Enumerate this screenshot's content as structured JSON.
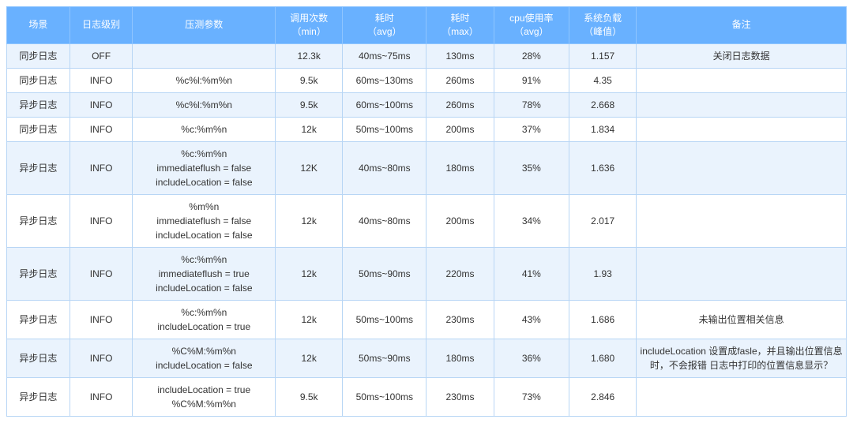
{
  "table": {
    "header_bg": "#69b1ff",
    "header_fg": "#ffffff",
    "row_odd_bg": "#eaf3fd",
    "row_even_bg": "#ffffff",
    "border_color": "#b8d6f5",
    "font_size_pt": 9,
    "columns": [
      {
        "key": "scene",
        "label": "场景",
        "width_pct": 7.5
      },
      {
        "key": "level",
        "label": "日志级别",
        "width_pct": 7.5
      },
      {
        "key": "params",
        "label": "压测参数",
        "width_pct": 17
      },
      {
        "key": "calls",
        "label": "调用次数\n（min）",
        "width_pct": 8
      },
      {
        "key": "t_avg",
        "label": "耗时\n（avg）",
        "width_pct": 10
      },
      {
        "key": "t_max",
        "label": "耗时\n（max）",
        "width_pct": 8
      },
      {
        "key": "cpu",
        "label": "cpu使用率\n（avg）",
        "width_pct": 9
      },
      {
        "key": "load",
        "label": "系统负载\n（峰值）",
        "width_pct": 8
      },
      {
        "key": "remark",
        "label": "备注",
        "width_pct": 25
      }
    ],
    "rows": [
      {
        "scene": "同步日志",
        "level": "OFF",
        "params": "",
        "calls": "12.3k",
        "t_avg": "40ms~75ms",
        "t_max": "130ms",
        "cpu": "28%",
        "load": "1.157",
        "remark": "关闭日志数据"
      },
      {
        "scene": "同步日志",
        "level": "INFO",
        "params": "%c%l:%m%n",
        "calls": "9.5k",
        "t_avg": "60ms~130ms",
        "t_max": "260ms",
        "cpu": "91%",
        "load": "4.35",
        "remark": ""
      },
      {
        "scene": "异步日志",
        "level": "INFO",
        "params": "%c%l:%m%n",
        "calls": "9.5k",
        "t_avg": "60ms~100ms",
        "t_max": "260ms",
        "cpu": "78%",
        "load": "2.668",
        "remark": ""
      },
      {
        "scene": "同步日志",
        "level": "INFO",
        "params": "%c:%m%n",
        "calls": "12k",
        "t_avg": "50ms~100ms",
        "t_max": "200ms",
        "cpu": "37%",
        "load": "1.834",
        "remark": ""
      },
      {
        "scene": "异步日志",
        "level": "INFO",
        "params": "%c:%m%n\nimmediateflush = false\nincludeLocation = false",
        "calls": "12K",
        "t_avg": "40ms~80ms",
        "t_max": "180ms",
        "cpu": "35%",
        "load": "1.636",
        "remark": ""
      },
      {
        "scene": "异步日志",
        "level": "INFO",
        "params": "%m%n\nimmediateflush = false\nincludeLocation = false",
        "calls": "12k",
        "t_avg": "40ms~80ms",
        "t_max": "200ms",
        "cpu": "34%",
        "load": "2.017",
        "remark": ""
      },
      {
        "scene": "异步日志",
        "level": "INFO",
        "params": "%c:%m%n\nimmediateflush = true\nincludeLocation = false",
        "calls": "12k",
        "t_avg": "50ms~90ms",
        "t_max": "220ms",
        "cpu": "41%",
        "load": "1.93",
        "remark": ""
      },
      {
        "scene": "异步日志",
        "level": "INFO",
        "params": "%c:%m%n\nincludeLocation = true",
        "calls": "12k",
        "t_avg": "50ms~100ms",
        "t_max": "230ms",
        "cpu": "43%",
        "load": "1.686",
        "remark": "未输出位置相关信息"
      },
      {
        "scene": "异步日志",
        "level": "INFO",
        "params": "%C%M:%m%n\nincludeLocation = false",
        "calls": "12k",
        "t_avg": "50ms~90ms",
        "t_max": "180ms",
        "cpu": "36%",
        "load": "1.680",
        "remark": "includeLocation 设置成fasle，并且输出位置信息时，不会报错 日志中打印的位置信息显示？"
      },
      {
        "scene": "异步日志",
        "level": "INFO",
        "params": "includeLocation = true\n%C%M:%m%n",
        "calls": "9.5k",
        "t_avg": "50ms~100ms",
        "t_max": "230ms",
        "cpu": "73%",
        "load": "2.846",
        "remark": ""
      }
    ]
  }
}
